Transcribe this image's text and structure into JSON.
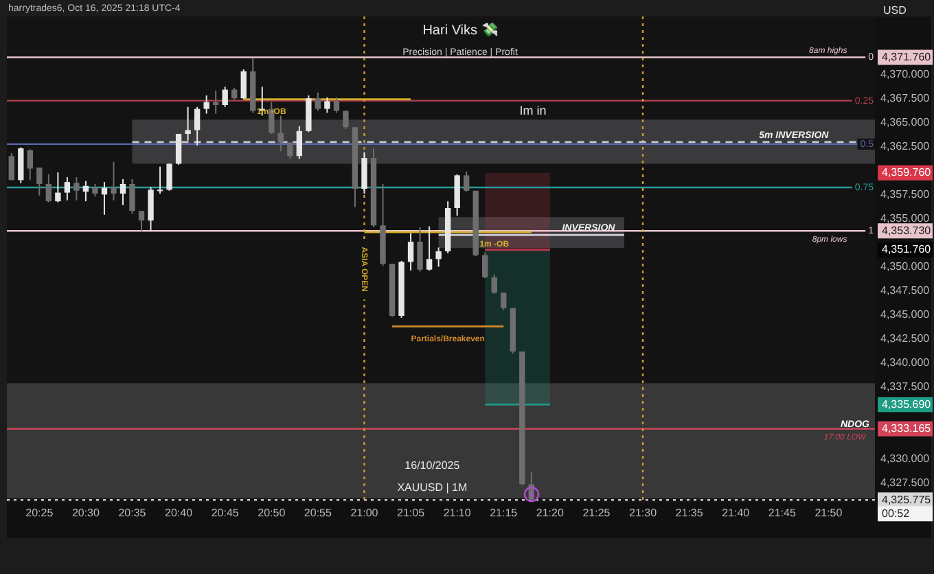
{
  "chart_data": {
    "type": "candlestick",
    "title": "Hari Viks 💸",
    "subtitle": "Precision | Patience | Profit",
    "ylabel": "USD",
    "x": [
      "2025-10-16T20:22",
      "2025-10-16T20:23",
      "2025-10-16T20:24",
      "2025-10-16T20:25",
      "2025-10-16T20:26",
      "2025-10-16T20:27",
      "2025-10-16T20:28",
      "2025-10-16T20:29",
      "2025-10-16T20:30",
      "2025-10-16T20:31",
      "2025-10-16T20:32",
      "2025-10-16T20:33",
      "2025-10-16T20:34",
      "2025-10-16T20:35",
      "2025-10-16T20:36",
      "2025-10-16T20:37",
      "2025-10-16T20:38",
      "2025-10-16T20:39",
      "2025-10-16T20:40",
      "2025-10-16T20:41",
      "2025-10-16T20:42",
      "2025-10-16T20:43",
      "2025-10-16T20:44",
      "2025-10-16T20:45",
      "2025-10-16T20:46",
      "2025-10-16T20:47",
      "2025-10-16T20:48",
      "2025-10-16T20:49",
      "2025-10-16T20:50",
      "2025-10-16T20:51",
      "2025-10-16T20:52",
      "2025-10-16T20:53",
      "2025-10-16T20:54",
      "2025-10-16T20:55",
      "2025-10-16T20:56",
      "2025-10-16T20:57",
      "2025-10-16T20:58",
      "2025-10-16T20:59",
      "2025-10-16T21:00",
      "2025-10-16T21:01",
      "2025-10-16T21:02",
      "2025-10-16T21:03",
      "2025-10-16T21:04",
      "2025-10-16T21:05",
      "2025-10-16T21:06",
      "2025-10-16T21:07",
      "2025-10-16T21:08",
      "2025-10-16T21:09",
      "2025-10-16T21:10",
      "2025-10-16T21:11",
      "2025-10-16T21:12",
      "2025-10-16T21:13",
      "2025-10-16T21:14",
      "2025-10-16T21:15",
      "2025-10-16T21:16",
      "2025-10-16T21:17",
      "2025-10-16T21:18"
    ],
    "ohlc": [
      [
        4361.5,
        4361.8,
        4359.0,
        4359.0
      ],
      [
        4359.0,
        4362.4,
        4358.7,
        4362.3
      ],
      [
        4362.1,
        4362.2,
        4359.0,
        4360.2
      ],
      [
        4360.3,
        4360.3,
        4357.4,
        4358.6
      ],
      [
        4358.6,
        4359.6,
        4356.7,
        4356.8
      ],
      [
        4356.8,
        4359.8,
        4356.7,
        4357.7
      ],
      [
        4357.7,
        4359.3,
        4356.9,
        4358.8
      ],
      [
        4358.7,
        4359.3,
        4356.9,
        4357.9
      ],
      [
        4357.8,
        4358.9,
        4356.8,
        4358.4
      ],
      [
        4358.2,
        4358.6,
        4357.3,
        4357.6
      ],
      [
        4357.5,
        4358.8,
        4355.4,
        4358.2
      ],
      [
        4358.2,
        4360.9,
        4356.9,
        4357.6
      ],
      [
        4357.6,
        4359.1,
        4356.4,
        4358.6
      ],
      [
        4358.6,
        4359.1,
        4355.5,
        4355.8
      ],
      [
        4355.8,
        4355.8,
        4353.7,
        4354.8
      ],
      [
        4354.8,
        4358.3,
        4353.7,
        4358.0
      ],
      [
        4358.0,
        4360.4,
        4357.6,
        4358.0
      ],
      [
        4358.0,
        4360.7,
        4357.9,
        4360.7
      ],
      [
        4360.7,
        4363.8,
        4360.6,
        4363.8
      ],
      [
        4363.8,
        4366.6,
        4363.1,
        4364.2
      ],
      [
        4364.2,
        4366.6,
        4362.6,
        4366.4
      ],
      [
        4366.4,
        4367.8,
        4365.9,
        4367.1
      ],
      [
        4367.1,
        4368.3,
        4365.9,
        4366.8
      ],
      [
        4366.8,
        4368.7,
        4366.6,
        4368.4
      ],
      [
        4368.4,
        4368.6,
        4367.3,
        4367.5
      ],
      [
        4367.5,
        4370.5,
        4367.4,
        4370.3
      ],
      [
        4370.3,
        4371.7,
        4366.0,
        4366.2
      ],
      [
        4366.2,
        4368.7,
        4365.7,
        4366.4
      ],
      [
        4366.4,
        4367.1,
        4363.8,
        4363.9
      ],
      [
        4363.9,
        4365.7,
        4362.0,
        4362.9
      ],
      [
        4362.9,
        4362.9,
        4361.2,
        4361.5
      ],
      [
        4361.5,
        4364.6,
        4361.2,
        4364.1
      ],
      [
        4364.1,
        4367.8,
        4364.0,
        4367.5
      ],
      [
        4367.5,
        4368.1,
        4366.2,
        4366.4
      ],
      [
        4366.4,
        4367.6,
        4366.0,
        4367.2
      ],
      [
        4367.2,
        4367.6,
        4366.0,
        4366.2
      ],
      [
        4366.2,
        4366.2,
        4364.3,
        4364.5
      ],
      [
        4364.5,
        4364.5,
        4356.2,
        4358.1
      ],
      [
        4358.1,
        4361.9,
        4357.6,
        4361.3
      ],
      [
        4361.3,
        4362.3,
        4354.1,
        4354.3
      ],
      [
        4354.3,
        4358.6,
        4350.1,
        4350.3
      ],
      [
        4350.3,
        4350.3,
        4344.8,
        4344.9
      ],
      [
        4344.9,
        4350.6,
        4344.7,
        4350.5
      ],
      [
        4350.5,
        4353.5,
        4349.6,
        4352.6
      ],
      [
        4352.6,
        4354.1,
        4349.5,
        4349.7
      ],
      [
        4349.7,
        4354.2,
        4349.6,
        4350.8
      ],
      [
        4350.8,
        4352.0,
        4350.0,
        4351.6
      ],
      [
        4351.6,
        4356.8,
        4351.4,
        4356.1
      ],
      [
        4356.1,
        4359.6,
        4355.3,
        4359.5
      ],
      [
        4359.5,
        4359.9,
        4357.8,
        4357.9
      ],
      [
        4357.9,
        4357.9,
        4351.1,
        4351.2
      ],
      [
        4351.2,
        4351.5,
        4348.8,
        4348.9
      ],
      [
        4348.9,
        4349.2,
        4347.2,
        4347.3
      ],
      [
        4347.3,
        4347.3,
        4345.5,
        4345.7
      ],
      [
        4345.7,
        4345.7,
        4341.0,
        4341.2
      ],
      [
        4341.2,
        4341.2,
        4327.3,
        4327.4
      ],
      [
        4327.4,
        4328.7,
        4325.7,
        4325.775
      ]
    ],
    "colors": [
      "#6e6e6e",
      "#e6e6e6",
      "#6e6e6e",
      "#6e6e6e",
      "#6e6e6e",
      "#e6e6e6",
      "#e6e6e6",
      "#6e6e6e",
      "#e6e6e6",
      "#6e6e6e",
      "#e6e6e6",
      "#6e6e6e",
      "#e6e6e6",
      "#6e6e6e",
      "#6e6e6e",
      "#e6e6e6",
      "#e6e6e6",
      "#e6e6e6",
      "#e6e6e6",
      "#e6e6e6",
      "#e6e6e6",
      "#e6e6e6",
      "#6e6e6e",
      "#e6e6e6",
      "#6e6e6e",
      "#e6e6e6",
      "#6e6e6e",
      "#e6e6e6",
      "#6e6e6e",
      "#6e6e6e",
      "#6e6e6e",
      "#e6e6e6",
      "#e6e6e6",
      "#6e6e6e",
      "#e6e6e6",
      "#6e6e6e",
      "#6e6e6e",
      "#6e6e6e",
      "#e6e6e6",
      "#6e6e6e",
      "#6e6e6e",
      "#6e6e6e",
      "#e6e6e6",
      "#e6e6e6",
      "#6e6e6e",
      "#e6e6e6",
      "#e6e6e6",
      "#e6e6e6",
      "#e6e6e6",
      "#6e6e6e",
      "#6e6e6e",
      "#6e6e6e",
      "#6e6e6e",
      "#6e6e6e",
      "#6e6e6e",
      "#6e6e6e",
      "#6e6e6e"
    ],
    "series": [
      {
        "type": "line",
        "color": "#d4b12a",
        "x": [
          "2025-10-16T20:47",
          "2025-10-16T21:05"
        ],
        "values": [
          4367.4,
          4367.4
        ]
      },
      {
        "type": "line",
        "color": "#d4b12a",
        "x": [
          "2025-10-16T21:00",
          "2025-10-16T21:18"
        ],
        "values": [
          4353.6,
          4353.6
        ]
      },
      {
        "type": "line",
        "color": "#d08a2a",
        "x": [
          "2025-10-16T21:03",
          "2025-10-16T21:15"
        ],
        "values": [
          4343.8,
          4343.8
        ]
      },
      {
        "type": "line",
        "color": "#c8c8d2",
        "line_style": "dashed",
        "x": [
          "2025-10-16T20:35",
          "2025-10-16T21:55"
        ],
        "values": [
          4362.96,
          4362.96
        ],
        "lower": [
          4360.7,
          4360.7
        ],
        "upper": [
          4365.28,
          4365.28
        ]
      },
      {
        "type": "line",
        "color": "#c8c8d2",
        "x": [
          "2025-10-16T21:08",
          "2025-10-16T21:28"
        ],
        "values": [
          4353.3,
          4353.3
        ],
        "lower": [
          4351.94,
          4351.94
        ],
        "upper": [
          4355.16,
          4355.16
        ]
      },
      {
        "type": "line",
        "color": "#c0394c",
        "x": [
          "2025-10-16T21:13",
          "2025-10-16T21:20"
        ],
        "values": [
          4351.76,
          4351.76
        ],
        "lower": [
          4351.76,
          4351.76
        ],
        "upper": [
          4359.76,
          4359.76
        ]
      },
      {
        "type": "line",
        "color": "#1f9c84",
        "x": [
          "2025-10-16T21:13",
          "2025-10-16T21:20"
        ],
        "values": [
          4335.69,
          4335.69
        ],
        "lower": [
          4335.69,
          4335.69
        ],
        "upper": [
          4351.76,
          4351.76
        ]
      }
    ],
    "xlim": [
      "2025-10-16T20:21:30",
      "2025-10-16T21:55"
    ],
    "xticks": [
      {
        "value": "2025-10-16T20:25",
        "label": "20:25"
      },
      {
        "value": "2025-10-16T20:30",
        "label": "20:30"
      },
      {
        "value": "2025-10-16T20:35",
        "label": "20:35"
      },
      {
        "value": "2025-10-16T20:40",
        "label": "20:40"
      },
      {
        "value": "2025-10-16T20:45",
        "label": "20:45"
      },
      {
        "value": "2025-10-16T20:50",
        "label": "20:50"
      },
      {
        "value": "2025-10-16T20:55",
        "label": "20:55"
      },
      {
        "value": "2025-10-16T21:00",
        "label": "21:00"
      },
      {
        "value": "2025-10-16T21:05",
        "label": "21:05"
      },
      {
        "value": "2025-10-16T21:10",
        "label": "21:10"
      },
      {
        "value": "2025-10-16T21:15",
        "label": "21:15"
      },
      {
        "value": "2025-10-16T21:20",
        "label": "21:20"
      },
      {
        "value": "2025-10-16T21:25",
        "label": "21:25"
      },
      {
        "value": "2025-10-16T21:30",
        "label": "21:30"
      },
      {
        "value": "2025-10-16T21:35",
        "label": "21:35"
      },
      {
        "value": "2025-10-16T21:40",
        "label": "21:40"
      },
      {
        "value": "2025-10-16T21:45",
        "label": "21:45"
      },
      {
        "value": "2025-10-16T21:50",
        "label": "21:50"
      }
    ],
    "ylim": [
      4325.5,
      4376
    ],
    "yticks": [
      {
        "value": 4327.5,
        "label": "4,327.500"
      },
      {
        "value": 4330,
        "label": "4,330.000"
      },
      {
        "value": 4337.5,
        "label": "4,337.500"
      },
      {
        "value": 4340,
        "label": "4,340.000"
      },
      {
        "value": 4342.5,
        "label": "4,342.500"
      },
      {
        "value": 4345,
        "label": "4,345.000"
      },
      {
        "value": 4347.5,
        "label": "4,347.500"
      },
      {
        "value": 4350,
        "label": "4,350.000"
      },
      {
        "value": 4355,
        "label": "4,355.000"
      },
      {
        "value": 4357.5,
        "label": "4,357.500"
      },
      {
        "value": 4362.5,
        "label": "4,362.500"
      },
      {
        "value": 4365,
        "label": "4,365.000"
      },
      {
        "value": 4367.5,
        "label": "4,367.500"
      },
      {
        "value": 4370,
        "label": "4,370.000"
      }
    ],
    "ref_lines": [
      {
        "axis": "y",
        "value": 4371.76,
        "label": "4,371.760",
        "color": "#e8c4ca"
      },
      {
        "axis": "y",
        "value": 4367.25,
        "label": null,
        "color": "#b0404e"
      },
      {
        "axis": "y",
        "value": 4362.745,
        "label": null,
        "color": "#5a66b0"
      },
      {
        "axis": "y",
        "value": 4358.24,
        "label": null,
        "color": "#2a9a98"
      },
      {
        "axis": "y",
        "value": 4353.73,
        "label": "4,353.730",
        "color": "#e8c4ca"
      },
      {
        "axis": "y",
        "value": 4333.165,
        "label": "4,333.165",
        "color": "#d2435a"
      },
      {
        "axis": "y",
        "value": 4325.775,
        "label": "4,325.775",
        "color": "#d8d8d8",
        "line_style": "dotted"
      },
      {
        "axis": "x",
        "value": "2025-10-16T21:00",
        "label": "ASIA OPEN",
        "color": "#c9a227",
        "line_style": "dotted"
      },
      {
        "axis": "x",
        "value": "2025-10-16T21:30",
        "label": null,
        "color": "#c9a227",
        "line_style": "dotted"
      }
    ],
    "bands": [
      {
        "axis": "y",
        "from": 4325.94,
        "to": 4337.9,
        "label": "NDOG",
        "color": "#383838"
      }
    ],
    "annotations": [
      "harrytrades6, Oct 16, 2025 21:18 UTC-4",
      "Im in",
      "16/10/2025",
      "XAUUSD | 1M",
      "4,359.760",
      "4,351.760",
      "4,335.690",
      "00:52",
      {
        "text": "8am highs",
        "x": "2025-10-16T21:52",
        "y": 4371.76
      },
      {
        "text": "8pm lows",
        "x": "2025-10-16T21:52",
        "y": 4353.73
      },
      {
        "text": "0",
        "x": "2025-10-16T21:55",
        "y": 4371.76
      },
      {
        "text": "0.25",
        "x": "2025-10-16T21:55",
        "y": 4367.25
      },
      {
        "text": "0.5",
        "x": "2025-10-16T21:55",
        "y": 4362.745
      },
      {
        "text": "0.75",
        "x": "2025-10-16T21:55",
        "y": 4358.24
      },
      {
        "text": "1",
        "x": "2025-10-16T21:55",
        "y": 4353.73
      },
      {
        "text": "17:00 LOW",
        "x": "2025-10-16T21:54",
        "y": 4333.165
      },
      {
        "text": "1m -OB",
        "x": "2025-10-16T20:50",
        "y": 4367.4
      },
      {
        "text": "1m -OB",
        "x": "2025-10-16T21:14",
        "y": 4353.6
      },
      {
        "text": "Partials/Breakeven",
        "x": "2025-10-16T21:09",
        "y": 4343.8
      },
      {
        "text": "INVERSION",
        "x": "2025-10-16T21:27",
        "y": 4353.3
      },
      {
        "text": "5m INVERSION",
        "x": "2025-10-16T21:50",
        "y": 4362.96
      }
    ]
  }
}
